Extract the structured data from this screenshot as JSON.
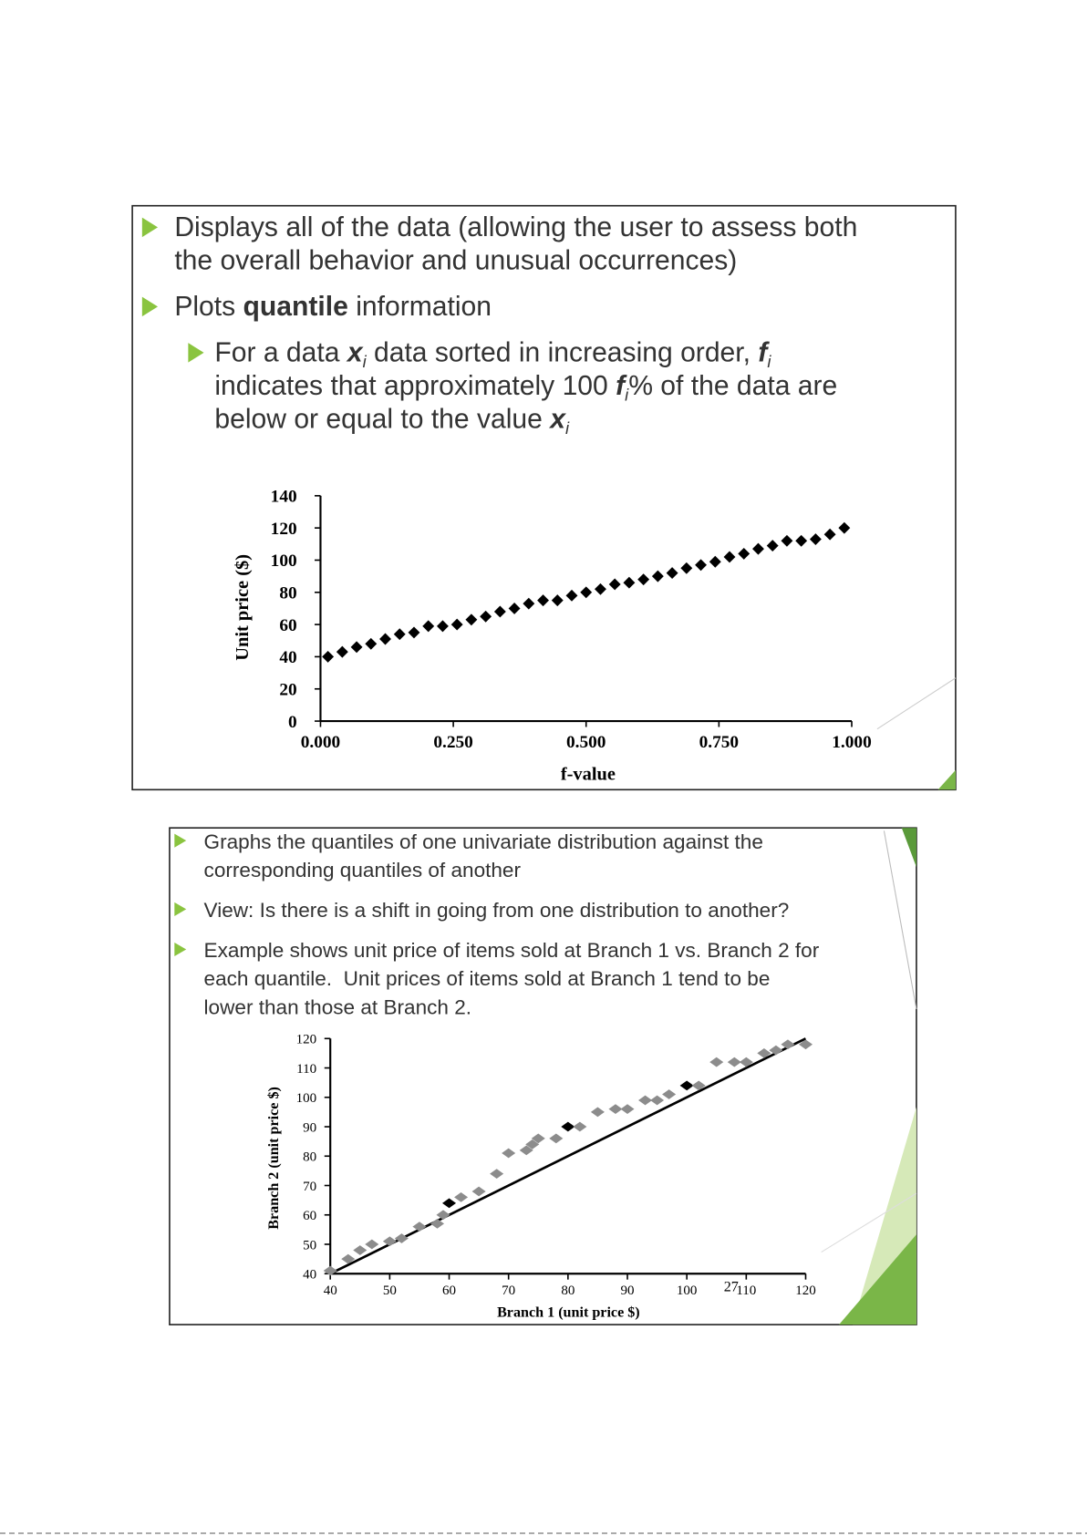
{
  "slide1": {
    "bullets": [
      [
        "Displays all of the data (allowing the user to assess both",
        "the overall behavior and unusual occurrences)"
      ],
      [
        "Plots ",
        "quantile",
        " information"
      ],
      [
        "For a data ",
        "x",
        "i",
        " data sorted in increasing order, ",
        "f",
        "i",
        "indicates that approximately 100 ",
        "f",
        "i",
        "% of the data are",
        "below or equal to the value ",
        "x",
        "i"
      ]
    ]
  },
  "slide2": {
    "bullets": [
      [
        "Graphs the quantiles of one univariate distribution against the",
        "corresponding quantiles of another"
      ],
      [
        "View: Is there is a shift in going from one distribution to another?"
      ],
      [
        "Example shows unit price of items sold at Branch 1 vs. Branch 2 for",
        "each quantile.  Unit prices of items sold at Branch 1 tend to be",
        "lower than those at Branch 2."
      ]
    ],
    "page_number": "27"
  },
  "chart_data": [
    {
      "type": "scatter",
      "xlabel": "f-value",
      "ylabel": "Unit price ($)",
      "color": "#000000",
      "x": [
        0.014,
        0.041,
        0.068,
        0.095,
        0.122,
        0.149,
        0.176,
        0.203,
        0.23,
        0.257,
        0.284,
        0.311,
        0.338,
        0.365,
        0.392,
        0.419,
        0.446,
        0.473,
        0.5,
        0.527,
        0.554,
        0.581,
        0.608,
        0.635,
        0.662,
        0.689,
        0.716,
        0.743,
        0.77,
        0.797,
        0.824,
        0.851,
        0.878,
        0.905,
        0.932,
        0.959,
        0.986
      ],
      "values": [
        40,
        43,
        46,
        48,
        51,
        54,
        55,
        59,
        59,
        60,
        63,
        65,
        68,
        70,
        73,
        75,
        75,
        78,
        80,
        82,
        85,
        86,
        88,
        90,
        92,
        95,
        97,
        99,
        102,
        104,
        107,
        109,
        112,
        112,
        113,
        116,
        120
      ],
      "xlim": [
        0,
        1
      ],
      "xticks": [
        {
          "value": 0,
          "label": "0.000"
        },
        {
          "value": 0.25,
          "label": "0.250"
        },
        {
          "value": 0.5,
          "label": "0.500"
        },
        {
          "value": 0.75,
          "label": "0.750"
        },
        {
          "value": 1,
          "label": "1.000"
        }
      ],
      "ylim": [
        0,
        140
      ],
      "yticks": [
        0,
        20,
        40,
        60,
        80,
        100,
        120,
        140
      ]
    },
    {
      "type": "scatter",
      "xlabel": "Branch 1 (unit price $)",
      "ylabel": "Branch 2 (unit price $)",
      "diagonal_line": true,
      "x": [
        40,
        43,
        45,
        47,
        50,
        52,
        55,
        58,
        59,
        60,
        62,
        65,
        68,
        70,
        73,
        74,
        75,
        78,
        80,
        82,
        85,
        88,
        90,
        93,
        95,
        97,
        100,
        102,
        105,
        108,
        110,
        113,
        115,
        117,
        120
      ],
      "values": [
        41,
        45,
        48,
        50,
        51,
        52,
        56,
        57,
        60,
        64,
        66,
        68,
        74,
        81,
        82,
        84,
        86,
        86,
        90,
        90,
        95,
        96,
        96,
        99,
        99,
        101,
        104,
        104,
        112,
        112,
        112,
        115,
        116,
        118,
        118
      ],
      "point_colors": [
        "#8c8c8c",
        "#8c8c8c",
        "#8c8c8c",
        "#8c8c8c",
        "#8c8c8c",
        "#8c8c8c",
        "#8c8c8c",
        "#8c8c8c",
        "#8c8c8c",
        "#000000",
        "#8c8c8c",
        "#8c8c8c",
        "#8c8c8c",
        "#8c8c8c",
        "#8c8c8c",
        "#8c8c8c",
        "#8c8c8c",
        "#8c8c8c",
        "#000000",
        "#8c8c8c",
        "#8c8c8c",
        "#8c8c8c",
        "#8c8c8c",
        "#8c8c8c",
        "#8c8c8c",
        "#8c8c8c",
        "#000000",
        "#8c8c8c",
        "#8c8c8c",
        "#8c8c8c",
        "#8c8c8c",
        "#8c8c8c",
        "#8c8c8c",
        "#8c8c8c",
        "#8c8c8c"
      ],
      "xlim": [
        40,
        120
      ],
      "xticks": [
        40,
        50,
        60,
        70,
        80,
        90,
        100,
        110,
        120
      ],
      "ylim": [
        40,
        120
      ],
      "yticks": [
        40,
        50,
        60,
        70,
        80,
        90,
        100,
        110,
        120
      ]
    }
  ]
}
